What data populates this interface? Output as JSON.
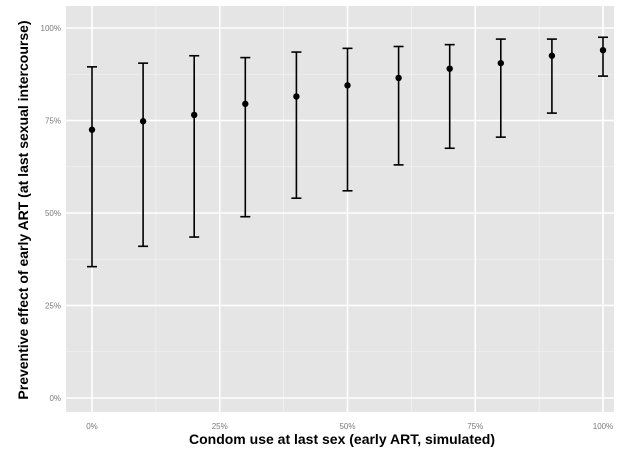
{
  "chart_data": {
    "type": "scatter",
    "error_bars": true,
    "xlabel": "Condom use at last sex (early ART, simulated)",
    "ylabel": "Preventive effect of early ART (at last sexual intercourse)",
    "x_ticks": [
      "0%",
      "25%",
      "50%",
      "75%",
      "100%"
    ],
    "y_ticks": [
      "0%",
      "25%",
      "50%",
      "75%",
      "100%"
    ],
    "xlim": [
      0,
      100
    ],
    "ylim": [
      0,
      100
    ],
    "grid": true,
    "background": "#e5e5e5",
    "grid_color": "#ffffff",
    "series": [
      {
        "x": [
          0,
          10,
          20,
          30,
          40,
          50,
          60,
          70,
          80,
          90,
          100
        ],
        "y": [
          72.5,
          74.8,
          76.5,
          79.5,
          81.5,
          84.5,
          86.5,
          89.0,
          90.5,
          92.5,
          94.0
        ],
        "lower": [
          35.5,
          41.0,
          43.5,
          49.0,
          54.0,
          56.0,
          63.0,
          67.5,
          70.5,
          77.0,
          87.0
        ],
        "upper": [
          89.5,
          90.5,
          92.5,
          92.0,
          93.5,
          94.5,
          95.0,
          95.5,
          97.0,
          97.0,
          97.5
        ]
      }
    ]
  }
}
